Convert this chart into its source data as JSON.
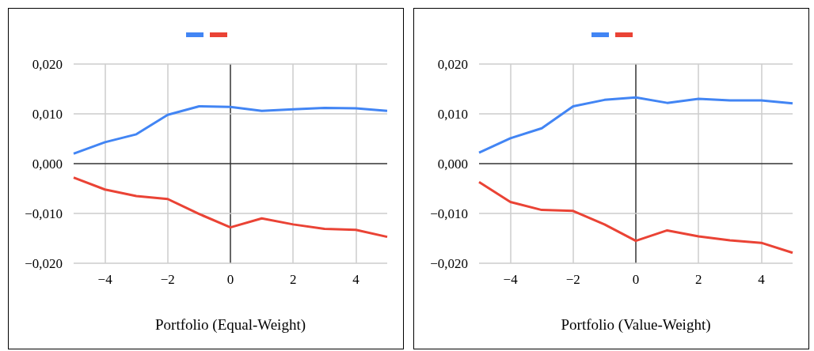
{
  "chart_data": [
    {
      "type": "line",
      "xlabel": "Portfolio (Equal-Weight)",
      "grid": true,
      "marker": "none",
      "line_style": "solid",
      "x": [
        -5,
        -4,
        -3,
        -2,
        -1,
        0,
        1,
        2,
        3,
        4,
        5
      ],
      "xlim": [
        -5,
        5
      ],
      "xticks": [
        {
          "value": -4,
          "label": "−4"
        },
        {
          "value": -2,
          "label": "−2"
        },
        {
          "value": 0,
          "label": "0"
        },
        {
          "value": 2,
          "label": "2"
        },
        {
          "value": 4,
          "label": "4"
        }
      ],
      "ylim": [
        -0.02,
        0.02
      ],
      "yticks": [
        {
          "value": -0.02,
          "label": "−0,020"
        },
        {
          "value": -0.01,
          "label": "−0,010"
        },
        {
          "value": 0,
          "label": "0,000"
        },
        {
          "value": 0.01,
          "label": "0,010"
        },
        {
          "value": 0.02,
          "label": "0,020"
        }
      ],
      "series": [
        {
          "color": "#4285f4",
          "values": [
            0.002,
            0.0043,
            0.0059,
            0.0098,
            0.0115,
            0.0114,
            0.0106,
            0.0109,
            0.0112,
            0.0111,
            0.0106
          ]
        },
        {
          "color": "#ea4335",
          "values": [
            -0.0028,
            -0.0052,
            -0.0065,
            -0.0071,
            -0.0101,
            -0.0128,
            -0.011,
            -0.0122,
            -0.0131,
            -0.0133,
            -0.0147
          ]
        }
      ]
    },
    {
      "type": "line",
      "xlabel": "Portfolio (Value-Weight)",
      "grid": true,
      "marker": "none",
      "line_style": "solid",
      "x": [
        -5,
        -4,
        -3,
        -2,
        -1,
        0,
        1,
        2,
        3,
        4,
        5
      ],
      "xlim": [
        -5,
        5
      ],
      "xticks": [
        {
          "value": -4,
          "label": "−4"
        },
        {
          "value": -2,
          "label": "−2"
        },
        {
          "value": 0,
          "label": "0"
        },
        {
          "value": 2,
          "label": "2"
        },
        {
          "value": 4,
          "label": "4"
        }
      ],
      "ylim": [
        -0.02,
        0.02
      ],
      "yticks": [
        {
          "value": -0.02,
          "label": "−0,020"
        },
        {
          "value": -0.01,
          "label": "−0,010"
        },
        {
          "value": 0,
          "label": "0,000"
        },
        {
          "value": 0.01,
          "label": "0,010"
        },
        {
          "value": 0.02,
          "label": "0,020"
        }
      ],
      "series": [
        {
          "color": "#4285f4",
          "values": [
            0.0022,
            0.0051,
            0.0071,
            0.0115,
            0.0128,
            0.0133,
            0.0122,
            0.013,
            0.0127,
            0.0127,
            0.0121
          ]
        },
        {
          "color": "#ea4335",
          "values": [
            -0.0037,
            -0.0077,
            -0.0093,
            -0.0095,
            -0.0122,
            -0.0155,
            -0.0134,
            -0.0146,
            -0.0154,
            -0.0159,
            -0.0179
          ]
        }
      ]
    }
  ]
}
